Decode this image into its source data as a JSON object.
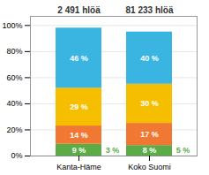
{
  "chart_data": {
    "type": "bar",
    "stacked": true,
    "data_labels": true,
    "grid": true,
    "categories": [
      "Kanta-Häme",
      "Koko Suomi"
    ],
    "category_titles": [
      "2 491 hlöä",
      "81 233 hlöä"
    ],
    "series": [
      {
        "color": "#5bac47",
        "values": [
          9,
          8
        ],
        "value_labels": [
          "9 %",
          "8 %"
        ]
      },
      {
        "color": "#f07832",
        "values": [
          14,
          17
        ],
        "value_labels": [
          "14 %",
          "17 %"
        ]
      },
      {
        "color": "#f5bf00",
        "values": [
          29,
          30
        ],
        "value_labels": [
          "29 %",
          "30 %"
        ]
      },
      {
        "color": "#3ab4e0",
        "values": [
          46,
          40
        ],
        "value_labels": [
          "46 %",
          "40 %"
        ]
      }
    ],
    "annotations": [
      {
        "category": "Kanta-Häme",
        "text": "3 %",
        "value": 3
      },
      {
        "category": "Koko Suomi",
        "text": "5 %",
        "value": 5
      }
    ],
    "ylim": [
      0,
      107
    ],
    "yticks": [
      {
        "value": 0,
        "label": "0%"
      },
      {
        "value": 20,
        "label": "20%"
      },
      {
        "value": 40,
        "label": "40%"
      },
      {
        "value": 60,
        "label": "60%"
      },
      {
        "value": 80,
        "label": "80%"
      },
      {
        "value": 100,
        "label": "100%"
      }
    ]
  }
}
